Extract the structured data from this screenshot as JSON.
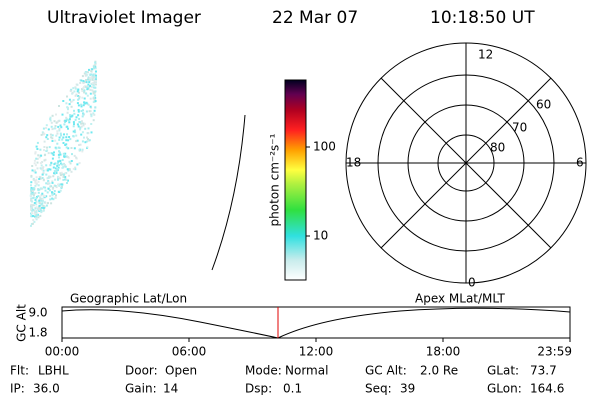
{
  "header": {
    "instrument": "Ultraviolet Imager",
    "date": "22 Mar 07",
    "time": "10:18:50 UT"
  },
  "colorbar": {
    "label": "photon cm⁻²s⁻¹",
    "ticks": [
      "100",
      "10"
    ]
  },
  "polar": {
    "mlt_labels": [
      "12",
      "18",
      "6",
      "0"
    ],
    "lat_labels": [
      "60",
      "70",
      "80"
    ]
  },
  "altitude_strip": {
    "left_title": "Geographic Lat/Lon",
    "right_title": "Apex MLat/MLT",
    "y_label": "GC Alt",
    "y_ticks": [
      "9.0",
      "1.8"
    ],
    "x_ticks": [
      "00:00",
      "06:00",
      "12:00",
      "18:00",
      "23:59"
    ]
  },
  "status": {
    "rows": [
      [
        {
          "label": "Flt:",
          "value": "LBHL"
        },
        {
          "label": "Door:",
          "value": "Open"
        },
        {
          "label": "Mode:",
          "value": "Normal"
        },
        {
          "label": "GC Alt:",
          "value": "2.0 Re"
        },
        {
          "label": "GLat:",
          "value": "73.7"
        }
      ],
      [
        {
          "label": "IP:",
          "value": "36.0"
        },
        {
          "label": "Gain:",
          "value": "14"
        },
        {
          "label": "Dsp:",
          "value": "0.1"
        },
        {
          "label": "Seq:",
          "value": "39"
        },
        {
          "label": "GLon:",
          "value": "164.6"
        }
      ]
    ]
  }
}
